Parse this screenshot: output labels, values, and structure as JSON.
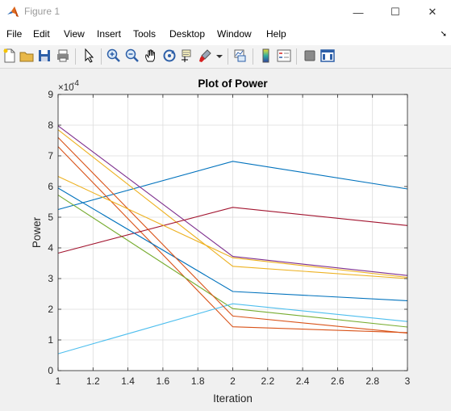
{
  "window": {
    "title": "Figure 1",
    "controls": {
      "minimize": "—",
      "maximize": "☐",
      "close": "✕"
    }
  },
  "menu": {
    "items": [
      "File",
      "Edit",
      "View",
      "Insert",
      "Tools",
      "Desktop",
      "Window",
      "Help"
    ]
  },
  "toolbar": {
    "icons": [
      "new-figure-icon",
      "open-file-icon",
      "save-icon",
      "print-icon",
      "pointer-icon",
      "zoom-in-icon",
      "zoom-out-icon",
      "pan-icon",
      "rotate-3d-icon",
      "data-cursor-icon",
      "brush-icon",
      "brush-dropdown-icon",
      "link-plot-icon",
      "insert-colorbar-icon",
      "insert-legend-icon",
      "hide-plot-tools-icon",
      "show-plot-tools-icon"
    ]
  },
  "chart_data": {
    "type": "line",
    "title": "Plot of Power",
    "xlabel": "Iteration",
    "ylabel": "Power",
    "exponent_label": "×10",
    "exponent_power": "-4",
    "xlim": [
      1,
      3
    ],
    "ylim": [
      0,
      9
    ],
    "xticks": [
      "1",
      "1.2",
      "1.4",
      "1.6",
      "1.8",
      "2",
      "2.2",
      "2.4",
      "2.6",
      "2.8",
      "3"
    ],
    "yticks": [
      "0",
      "1",
      "2",
      "3",
      "4",
      "5",
      "6",
      "7",
      "8",
      "9"
    ],
    "grid": true,
    "x": [
      1,
      2,
      3
    ],
    "series": [
      {
        "values": [
          5.25,
          6.82,
          5.92
        ],
        "color": "#0072bd"
      },
      {
        "values": [
          7.3,
          1.43,
          1.24
        ],
        "color": "#d95319"
      },
      {
        "values": [
          7.85,
          3.4,
          3.0
        ],
        "color": "#edb120"
      },
      {
        "values": [
          7.98,
          3.72,
          3.1
        ],
        "color": "#7e2f8e"
      },
      {
        "values": [
          5.72,
          2.02,
          1.42
        ],
        "color": "#77ac30"
      },
      {
        "values": [
          0.55,
          2.18,
          1.6
        ],
        "color": "#4dbeee"
      },
      {
        "values": [
          3.83,
          5.32,
          4.73
        ],
        "color": "#a2142f"
      },
      {
        "values": [
          5.95,
          2.58,
          2.28
        ],
        "color": "#0072bd"
      },
      {
        "values": [
          7.6,
          1.78,
          1.22
        ],
        "color": "#d95319"
      },
      {
        "values": [
          6.33,
          3.68,
          3.04
        ],
        "color": "#edb120"
      }
    ]
  }
}
